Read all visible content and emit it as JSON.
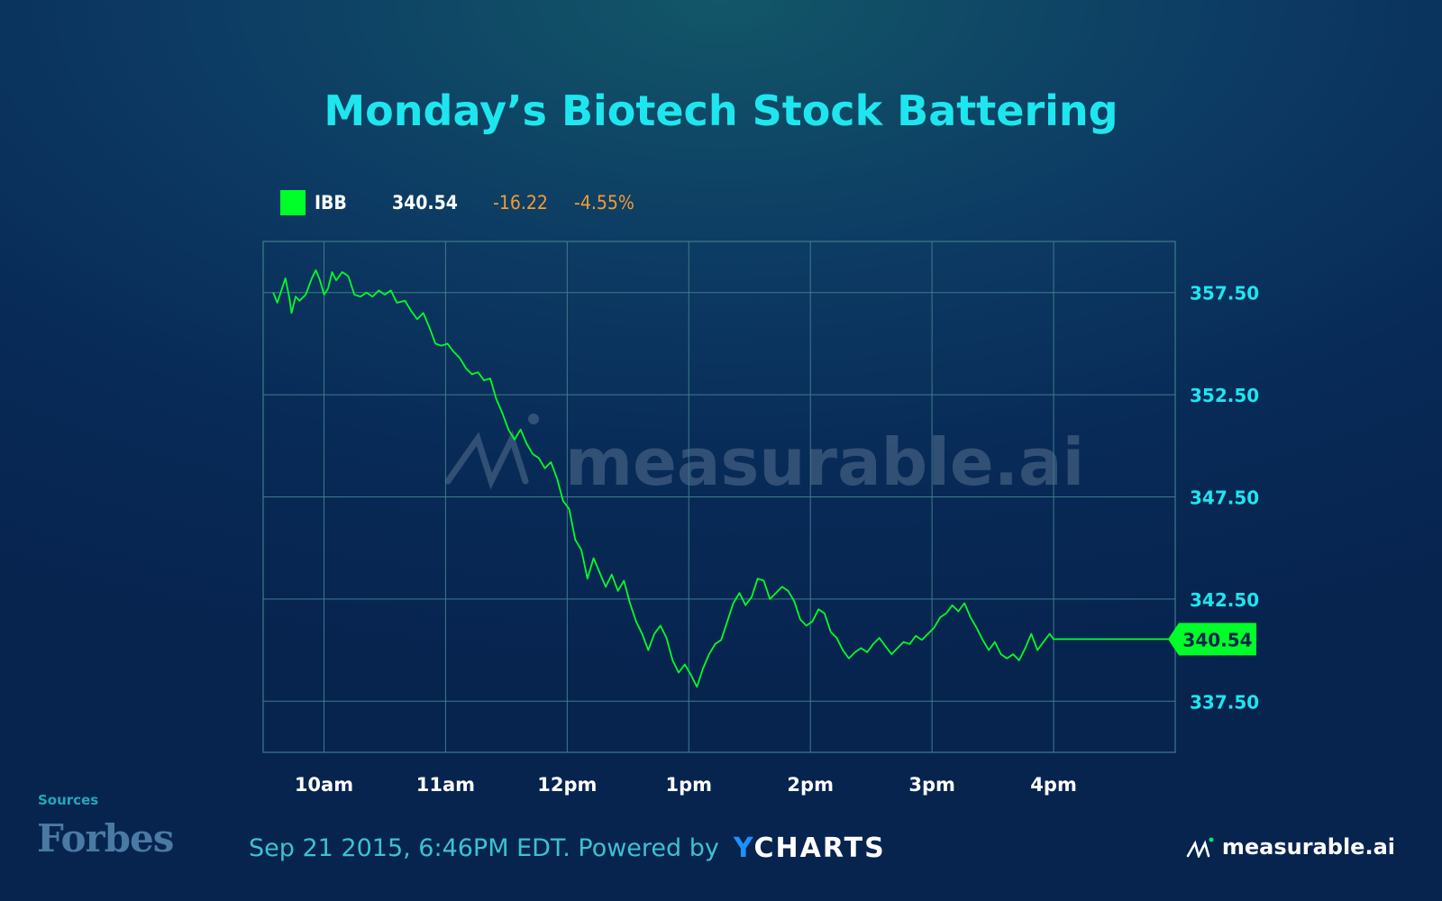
{
  "title": "Monday’s Biotech Stock Battering",
  "legend": {
    "name": "IBB",
    "value": "340.54",
    "change": "-16.22",
    "change_pct": "-4.55%",
    "color": "#00ff29",
    "change_color": "#f39a34"
  },
  "watermark": "measurable.ai",
  "footer": {
    "sources_label": "Sources",
    "source_name": "Forbes",
    "timestamp": "Sep 21 2015, 6:46PM EDT. Powered by",
    "powered_by_brand_y": "Y",
    "powered_by_brand_rest": "CHARTS",
    "brand": "measurable.ai"
  },
  "chart_data": {
    "type": "line",
    "series": [
      {
        "name": "IBB",
        "color": "#00ff29",
        "points": [
          [
            "09:35",
            357.5
          ],
          [
            "09:37",
            357.0
          ],
          [
            "09:39",
            357.6
          ],
          [
            "09:41",
            358.2
          ],
          [
            "09:43",
            357.2
          ],
          [
            "09:44",
            356.5
          ],
          [
            "09:46",
            357.3
          ],
          [
            "09:48",
            357.1
          ],
          [
            "09:51",
            357.4
          ],
          [
            "09:54",
            358.2
          ],
          [
            "09:56",
            358.6
          ],
          [
            "09:58",
            358.1
          ],
          [
            "10:00",
            357.4
          ],
          [
            "10:02",
            357.7
          ],
          [
            "10:04",
            358.5
          ],
          [
            "10:06",
            358.1
          ],
          [
            "10:09",
            358.5
          ],
          [
            "10:12",
            358.3
          ],
          [
            "10:15",
            357.4
          ],
          [
            "10:18",
            357.3
          ],
          [
            "10:21",
            357.5
          ],
          [
            "10:24",
            357.3
          ],
          [
            "10:27",
            357.6
          ],
          [
            "10:30",
            357.4
          ],
          [
            "10:33",
            357.6
          ],
          [
            "10:36",
            357.0
          ],
          [
            "10:40",
            357.1
          ],
          [
            "10:43",
            356.6
          ],
          [
            "10:46",
            356.2
          ],
          [
            "10:49",
            356.5
          ],
          [
            "10:52",
            355.8
          ],
          [
            "10:55",
            355.0
          ],
          [
            "10:58",
            354.9
          ],
          [
            "11:01",
            355.0
          ],
          [
            "11:04",
            354.6
          ],
          [
            "11:07",
            354.3
          ],
          [
            "11:10",
            353.8
          ],
          [
            "11:13",
            353.5
          ],
          [
            "11:16",
            353.6
          ],
          [
            "11:19",
            353.2
          ],
          [
            "11:22",
            353.3
          ],
          [
            "11:25",
            352.3
          ],
          [
            "11:28",
            351.6
          ],
          [
            "11:31",
            350.8
          ],
          [
            "11:34",
            350.3
          ],
          [
            "11:37",
            350.8
          ],
          [
            "11:40",
            350.1
          ],
          [
            "11:43",
            349.6
          ],
          [
            "11:46",
            349.4
          ],
          [
            "11:49",
            348.9
          ],
          [
            "11:52",
            349.2
          ],
          [
            "11:55",
            348.4
          ],
          [
            "11:58",
            347.3
          ],
          [
            "12:01",
            346.9
          ],
          [
            "12:04",
            345.4
          ],
          [
            "12:07",
            344.9
          ],
          [
            "12:10",
            343.5
          ],
          [
            "12:13",
            344.5
          ],
          [
            "12:16",
            343.8
          ],
          [
            "12:19",
            343.1
          ],
          [
            "12:22",
            343.7
          ],
          [
            "12:25",
            342.9
          ],
          [
            "12:28",
            343.4
          ],
          [
            "12:31",
            342.3
          ],
          [
            "12:34",
            341.4
          ],
          [
            "12:37",
            340.8
          ],
          [
            "12:40",
            340.0
          ],
          [
            "12:43",
            340.8
          ],
          [
            "12:46",
            341.2
          ],
          [
            "12:49",
            340.6
          ],
          [
            "12:52",
            339.5
          ],
          [
            "12:55",
            338.9
          ],
          [
            "12:58",
            339.3
          ],
          [
            "13:01",
            338.8
          ],
          [
            "13:04",
            338.2
          ],
          [
            "13:07",
            339.1
          ],
          [
            "13:10",
            339.8
          ],
          [
            "13:13",
            340.3
          ],
          [
            "13:16",
            340.5
          ],
          [
            "13:19",
            341.4
          ],
          [
            "13:22",
            342.3
          ],
          [
            "13:25",
            342.8
          ],
          [
            "13:28",
            342.2
          ],
          [
            "13:31",
            342.6
          ],
          [
            "13:34",
            343.5
          ],
          [
            "13:37",
            343.4
          ],
          [
            "13:40",
            342.5
          ],
          [
            "13:43",
            342.8
          ],
          [
            "13:46",
            343.1
          ],
          [
            "13:49",
            342.9
          ],
          [
            "13:52",
            342.4
          ],
          [
            "13:55",
            341.5
          ],
          [
            "13:58",
            341.2
          ],
          [
            "14:01",
            341.4
          ],
          [
            "14:04",
            342.0
          ],
          [
            "14:07",
            341.8
          ],
          [
            "14:10",
            340.9
          ],
          [
            "14:13",
            340.6
          ],
          [
            "14:16",
            340.0
          ],
          [
            "14:19",
            339.6
          ],
          [
            "14:22",
            339.9
          ],
          [
            "14:25",
            340.1
          ],
          [
            "14:28",
            339.9
          ],
          [
            "14:31",
            340.3
          ],
          [
            "14:34",
            340.6
          ],
          [
            "14:37",
            340.2
          ],
          [
            "14:40",
            339.8
          ],
          [
            "14:43",
            340.1
          ],
          [
            "14:46",
            340.4
          ],
          [
            "14:49",
            340.3
          ],
          [
            "14:52",
            340.7
          ],
          [
            "14:55",
            340.5
          ],
          [
            "14:58",
            340.8
          ],
          [
            "15:01",
            341.1
          ],
          [
            "15:04",
            341.6
          ],
          [
            "15:07",
            341.8
          ],
          [
            "15:10",
            342.2
          ],
          [
            "15:13",
            341.9
          ],
          [
            "15:16",
            342.3
          ],
          [
            "15:19",
            341.6
          ],
          [
            "15:22",
            341.1
          ],
          [
            "15:25",
            340.5
          ],
          [
            "15:28",
            340.0
          ],
          [
            "15:31",
            340.4
          ],
          [
            "15:34",
            339.8
          ],
          [
            "15:37",
            339.6
          ],
          [
            "15:40",
            339.8
          ],
          [
            "15:43",
            339.5
          ],
          [
            "15:46",
            340.1
          ],
          [
            "15:49",
            340.8
          ],
          [
            "15:52",
            340.0
          ],
          [
            "15:55",
            340.4
          ],
          [
            "15:58",
            340.8
          ],
          [
            "16:00",
            340.54
          ],
          [
            "16:59",
            340.54
          ]
        ]
      }
    ],
    "x_ticks": [
      {
        "label": "10am",
        "t": "10:00"
      },
      {
        "label": "11am",
        "t": "11:00"
      },
      {
        "label": "12pm",
        "t": "12:00"
      },
      {
        "label": "1pm",
        "t": "13:00"
      },
      {
        "label": "2pm",
        "t": "14:00"
      },
      {
        "label": "3pm",
        "t": "15:00"
      },
      {
        "label": "4pm",
        "t": "16:00"
      }
    ],
    "y_ticks": [
      337.5,
      342.5,
      347.5,
      352.5,
      357.5
    ],
    "y_tick_labels": [
      "337.50",
      "342.50",
      "347.50",
      "352.50",
      "357.50"
    ],
    "xlim": [
      "09:30",
      "17:00"
    ],
    "ylim": [
      335.0,
      360.0
    ],
    "last_value_label": "340.54",
    "grid": true,
    "legend_position": "top-left"
  }
}
